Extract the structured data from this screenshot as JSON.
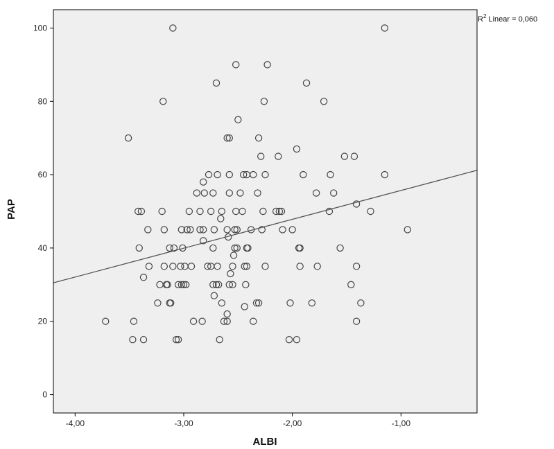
{
  "chart_data": {
    "type": "scatter",
    "title": "",
    "xlabel": "ALBI",
    "ylabel": "PAP",
    "xlim": [
      -4.2,
      -0.3
    ],
    "ylim": [
      -5,
      105
    ],
    "xticks": [
      -4.0,
      -3.0,
      -2.0,
      -1.0
    ],
    "xtick_labels": [
      "-4,00",
      "-3,00",
      "-2,00",
      "-1,00"
    ],
    "yticks": [
      0,
      20,
      40,
      60,
      80,
      100
    ],
    "ytick_labels": [
      "0",
      "20",
      "40",
      "60",
      "80",
      "100"
    ],
    "grid": false,
    "legend": "none",
    "annotation": {
      "prefix": "R",
      "sup": "2",
      "suffix": " Linear = 0,060"
    },
    "fit_line": {
      "type": "linear",
      "x": [
        -4.2,
        -0.3
      ],
      "y": [
        30.5,
        61.2
      ]
    },
    "colors": {
      "plot_bg": "#efefef",
      "marker": "#444444",
      "line": "#555555",
      "frame": "#000000"
    },
    "points": [
      [
        -3.1,
        100
      ],
      [
        -1.15,
        100
      ],
      [
        -2.52,
        90
      ],
      [
        -2.23,
        90
      ],
      [
        -2.7,
        85
      ],
      [
        -1.87,
        85
      ],
      [
        -3.19,
        80
      ],
      [
        -2.26,
        80
      ],
      [
        -1.71,
        80
      ],
      [
        -2.5,
        75
      ],
      [
        -3.51,
        70
      ],
      [
        -2.6,
        70
      ],
      [
        -2.58,
        70
      ],
      [
        -2.31,
        70
      ],
      [
        -1.96,
        67
      ],
      [
        -2.29,
        65
      ],
      [
        -2.13,
        65
      ],
      [
        -1.52,
        65
      ],
      [
        -1.43,
        65
      ],
      [
        -2.77,
        60
      ],
      [
        -2.69,
        60
      ],
      [
        -2.58,
        60
      ],
      [
        -2.45,
        60
      ],
      [
        -2.42,
        60
      ],
      [
        -2.36,
        60
      ],
      [
        -2.25,
        60
      ],
      [
        -1.9,
        60
      ],
      [
        -1.65,
        60
      ],
      [
        -1.15,
        60
      ],
      [
        -2.82,
        58
      ],
      [
        -2.88,
        55
      ],
      [
        -2.81,
        55
      ],
      [
        -2.73,
        55
      ],
      [
        -2.58,
        55
      ],
      [
        -2.48,
        55
      ],
      [
        -2.32,
        55
      ],
      [
        -1.78,
        55
      ],
      [
        -1.62,
        55
      ],
      [
        -1.41,
        52
      ],
      [
        -3.42,
        50
      ],
      [
        -3.39,
        50
      ],
      [
        -3.2,
        50
      ],
      [
        -2.95,
        50
      ],
      [
        -2.85,
        50
      ],
      [
        -2.75,
        50
      ],
      [
        -2.65,
        50
      ],
      [
        -2.52,
        50
      ],
      [
        -2.46,
        50
      ],
      [
        -2.27,
        50
      ],
      [
        -2.15,
        50
      ],
      [
        -2.12,
        50
      ],
      [
        -2.1,
        50
      ],
      [
        -1.66,
        50
      ],
      [
        -1.28,
        50
      ],
      [
        -2.66,
        48
      ],
      [
        -3.33,
        45
      ],
      [
        -3.18,
        45
      ],
      [
        -3.02,
        45
      ],
      [
        -2.97,
        45
      ],
      [
        -2.94,
        45
      ],
      [
        -2.85,
        45
      ],
      [
        -2.82,
        45
      ],
      [
        -2.72,
        45
      ],
      [
        -2.6,
        45
      ],
      [
        -2.53,
        45
      ],
      [
        -2.51,
        45
      ],
      [
        -2.38,
        45
      ],
      [
        -2.28,
        45
      ],
      [
        -2.09,
        45
      ],
      [
        -2.0,
        45
      ],
      [
        -0.94,
        45
      ],
      [
        -2.59,
        43
      ],
      [
        -2.82,
        42
      ],
      [
        -3.41,
        40
      ],
      [
        -3.13,
        40
      ],
      [
        -3.09,
        40
      ],
      [
        -3.01,
        40
      ],
      [
        -2.73,
        40
      ],
      [
        -2.53,
        40
      ],
      [
        -2.51,
        40
      ],
      [
        -2.42,
        40
      ],
      [
        -2.41,
        40
      ],
      [
        -1.94,
        40
      ],
      [
        -1.93,
        40
      ],
      [
        -1.56,
        40
      ],
      [
        -2.54,
        38
      ],
      [
        -3.37,
        32
      ],
      [
        -3.32,
        35
      ],
      [
        -3.18,
        35
      ],
      [
        -3.1,
        35
      ],
      [
        -3.03,
        35
      ],
      [
        -2.99,
        35
      ],
      [
        -2.93,
        35
      ],
      [
        -2.78,
        35
      ],
      [
        -2.75,
        35
      ],
      [
        -2.69,
        35
      ],
      [
        -2.55,
        35
      ],
      [
        -2.44,
        35
      ],
      [
        -2.42,
        35
      ],
      [
        -2.25,
        35
      ],
      [
        -1.93,
        35
      ],
      [
        -1.77,
        35
      ],
      [
        -1.41,
        35
      ],
      [
        -2.57,
        33
      ],
      [
        -3.22,
        30
      ],
      [
        -3.16,
        30
      ],
      [
        -3.15,
        30
      ],
      [
        -3.05,
        30
      ],
      [
        -3.02,
        30
      ],
      [
        -3.0,
        30
      ],
      [
        -2.98,
        30
      ],
      [
        -2.73,
        30
      ],
      [
        -2.7,
        30
      ],
      [
        -2.68,
        30
      ],
      [
        -2.58,
        30
      ],
      [
        -2.55,
        30
      ],
      [
        -2.43,
        30
      ],
      [
        -1.46,
        30
      ],
      [
        -2.72,
        27
      ],
      [
        -3.24,
        25
      ],
      [
        -3.13,
        25
      ],
      [
        -3.12,
        25
      ],
      [
        -2.65,
        25
      ],
      [
        -2.33,
        25
      ],
      [
        -2.31,
        25
      ],
      [
        -2.02,
        25
      ],
      [
        -1.82,
        25
      ],
      [
        -1.37,
        25
      ],
      [
        -2.44,
        24
      ],
      [
        -2.6,
        22
      ],
      [
        -3.72,
        20
      ],
      [
        -3.46,
        20
      ],
      [
        -2.91,
        20
      ],
      [
        -2.83,
        20
      ],
      [
        -2.63,
        20
      ],
      [
        -2.6,
        20
      ],
      [
        -2.36,
        20
      ],
      [
        -1.41,
        20
      ],
      [
        -3.47,
        15
      ],
      [
        -3.37,
        15
      ],
      [
        -3.07,
        15
      ],
      [
        -3.05,
        15
      ],
      [
        -2.67,
        15
      ],
      [
        -2.03,
        15
      ],
      [
        -1.96,
        15
      ]
    ]
  }
}
